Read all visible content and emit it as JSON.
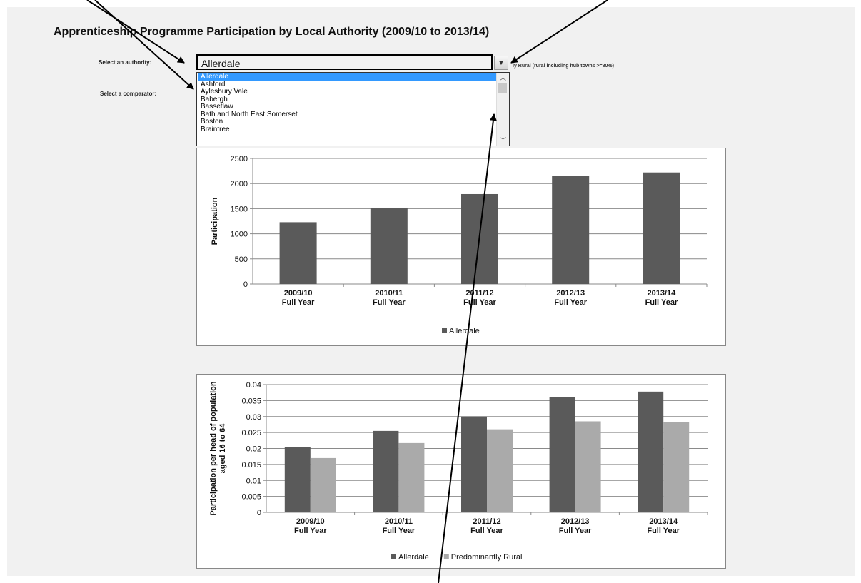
{
  "page_title": "Apprenticeship Programme Participation by Local Authority (2009/10 to 2013/14)",
  "authority_label": "Select an authority:",
  "comparator_label": "Select a comparator:",
  "authority_value": "Allerdale",
  "comparator_hint": "ly Rural (rural including hub towns >=80%)",
  "dropdown": {
    "items": [
      "Allerdale",
      "Ashford",
      "Aylesbury Vale",
      "Babergh",
      "Bassetlaw",
      "Bath and North East Somerset",
      "Boston",
      "Braintree"
    ],
    "selected": "Allerdale"
  },
  "chart_data": [
    {
      "type": "bar",
      "title": "",
      "ylabel": "Participation",
      "xlabel": "",
      "categories": [
        [
          "2009/10",
          "Full Year"
        ],
        [
          "2010/11",
          "Full Year"
        ],
        [
          "2011/12",
          "Full Year"
        ],
        [
          "2012/13",
          "Full Year"
        ],
        [
          "2013/14",
          "Full Year"
        ]
      ],
      "ylim": [
        0,
        2500
      ],
      "yticks": [
        "0",
        "500",
        "1000",
        "1500",
        "2000",
        "2500"
      ],
      "series": [
        {
          "name": "Allerdale",
          "color": "#5a5a5a",
          "values": [
            1230,
            1520,
            1790,
            2150,
            2220
          ]
        }
      ],
      "legend": "bottom",
      "grid": true
    },
    {
      "type": "bar",
      "title": "",
      "ylabel": "Participation per head of population aged 16 to 64",
      "ylabel_lines": [
        "Participation per head of population",
        "aged 16 to 64"
      ],
      "xlabel": "",
      "categories": [
        [
          "2009/10",
          "Full Year"
        ],
        [
          "2010/11",
          "Full Year"
        ],
        [
          "2011/12",
          "Full Year"
        ],
        [
          "2012/13",
          "Full Year"
        ],
        [
          "2013/14",
          "Full Year"
        ]
      ],
      "ylim": [
        0,
        0.04
      ],
      "yticks": [
        "0",
        "0.005",
        "0.01",
        "0.015",
        "0.02",
        "0.025",
        "0.03",
        "0.035",
        "0.04"
      ],
      "series": [
        {
          "name": "Allerdale",
          "color": "#5a5a5a",
          "values": [
            0.0205,
            0.0255,
            0.03,
            0.036,
            0.0378
          ]
        },
        {
          "name": "Predominantly Rural",
          "color": "#aaaaaa",
          "values": [
            0.017,
            0.0217,
            0.026,
            0.0285,
            0.0283
          ]
        }
      ],
      "legend": "bottom",
      "grid": true
    }
  ]
}
